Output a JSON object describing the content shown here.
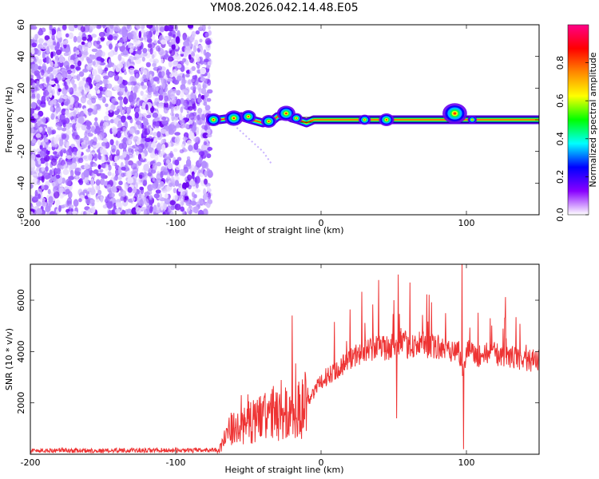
{
  "title": "YM08.2026.042.14.48.E05",
  "chart_data": [
    {
      "type": "heatmap",
      "name": "spectrogram",
      "xlabel": "Height of straight line (km)",
      "ylabel": "Frequency (Hz)",
      "xlim": [
        -200,
        150
      ],
      "ylim": [
        -60,
        60
      ],
      "xticks": [
        -200,
        -100,
        0,
        100
      ],
      "yticks": [
        -60,
        -40,
        -20,
        0,
        20,
        40,
        60
      ],
      "noise_region": {
        "x_from": -200,
        "x_to": -76,
        "y_from": -60,
        "y_to": 60
      },
      "blank_region": {
        "x_from": -76,
        "x_to": 150
      },
      "signal_band": {
        "x_from": -76,
        "x_to": 150,
        "center_freq": 0,
        "halfwidth": 1.5,
        "wobble_points": [
          [
            -76,
            1
          ],
          [
            -70,
            0
          ],
          [
            -62,
            1
          ],
          [
            -55,
            2
          ],
          [
            -48,
            0
          ],
          [
            -40,
            -2
          ],
          [
            -34,
            -1
          ],
          [
            -30,
            2
          ],
          [
            -24,
            3
          ],
          [
            -20,
            1
          ],
          [
            -16,
            0
          ],
          [
            -10,
            -2
          ],
          [
            -5,
            0
          ],
          [
            0,
            0
          ],
          [
            150,
            0
          ]
        ],
        "blobs": [
          [
            -74,
            0,
            2.5
          ],
          [
            -60,
            1,
            3
          ],
          [
            -50,
            2,
            2.5
          ],
          [
            -36,
            -1,
            2.5
          ],
          [
            -24,
            4,
            3
          ],
          [
            -17,
            1,
            2
          ],
          [
            30,
            0,
            2
          ],
          [
            45,
            0,
            2.5
          ],
          [
            92,
            4,
            4
          ],
          [
            104,
            0,
            1.5
          ]
        ],
        "tail": [
          [
            -58,
            -5
          ],
          [
            -40,
            -20
          ],
          [
            -34,
            -28
          ]
        ]
      },
      "colorbar": {
        "label": "Normalized spectral amplitude",
        "range": [
          0,
          1
        ],
        "ticks": [
          0.0,
          0.2,
          0.4,
          0.6,
          0.8
        ],
        "tick_labels": [
          "0.0",
          "0.2",
          "0.4",
          "0.6",
          "0.8"
        ],
        "colors": [
          "#ffffff",
          "#8800ff",
          "#0000ff",
          "#00ffff",
          "#00ff00",
          "#ffff00",
          "#ff8800",
          "#ff0000",
          "#ff0088"
        ]
      }
    },
    {
      "type": "line",
      "name": "snr",
      "xlabel": "Height of straight line (km)",
      "ylabel": "SNR (10 * v/v)",
      "xlim": [
        -200,
        150
      ],
      "ylim": [
        0,
        7400
      ],
      "xticks": [
        -200,
        -100,
        0,
        100
      ],
      "yticks": [
        2000,
        4000,
        6000
      ],
      "color": "#ee3333",
      "series": [
        {
          "name": "SNR",
          "x": [
            -200,
            -190,
            -180,
            -170,
            -160,
            -150,
            -140,
            -130,
            -120,
            -110,
            -100,
            -90,
            -80,
            -70,
            -66,
            -62,
            -58,
            -54,
            -50,
            -46,
            -42,
            -38,
            -34,
            -30,
            -26,
            -22,
            -18,
            -15,
            -12,
            -8,
            -4,
            0,
            5,
            10,
            15,
            20,
            25,
            30,
            35,
            40,
            45,
            50,
            53,
            55,
            60,
            65,
            70,
            75,
            80,
            85,
            90,
            95,
            98,
            100,
            105,
            110,
            115,
            120,
            125,
            130,
            135,
            140,
            145,
            150
          ],
          "y": [
            150,
            130,
            160,
            140,
            150,
            130,
            160,
            150,
            140,
            160,
            150,
            140,
            160,
            180,
            600,
            1000,
            900,
            1100,
            1400,
            1300,
            1500,
            1300,
            1700,
            1400,
            1500,
            1600,
            1800,
            1700,
            2000,
            2200,
            2500,
            2800,
            3100,
            3300,
            3500,
            3700,
            3900,
            4000,
            4100,
            4200,
            4100,
            4300,
            4000,
            4400,
            4200,
            4250,
            4300,
            4150,
            4200,
            4050,
            4100,
            4000,
            3200,
            4050,
            3950,
            3800,
            3950,
            3900,
            3850,
            3800,
            3750,
            3700,
            3650,
            3650
          ],
          "spikes": [
            [
              -20,
              5400
            ],
            [
              53,
              7000
            ],
            [
              50,
              6000
            ],
            [
              97,
              7400
            ],
            [
              98,
              200
            ],
            [
              52,
              1400
            ],
            [
              -55,
              2300
            ],
            [
              -30,
              2400
            ],
            [
              -45,
              2000
            ]
          ]
        }
      ]
    }
  ]
}
